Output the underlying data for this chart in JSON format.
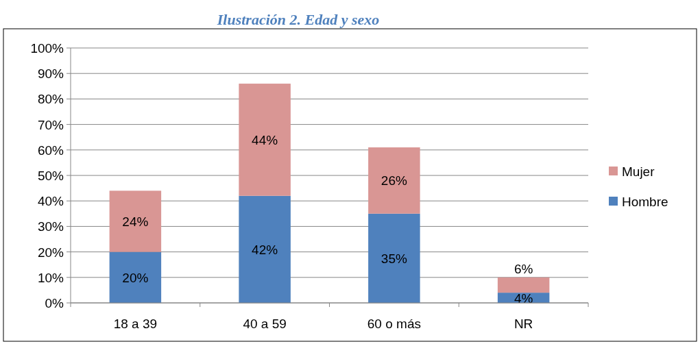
{
  "chart_data": {
    "type": "bar",
    "title": "Ilustración 2. Edad y sexo",
    "categories": [
      "18 a 39",
      "40 a 59",
      "60 o más",
      "NR"
    ],
    "stacked": true,
    "series": [
      {
        "name": "Hombre",
        "color": "#4f81bd",
        "values": [
          20,
          42,
          35,
          4
        ],
        "value_labels": [
          "20%",
          "42%",
          "35%",
          "4%"
        ]
      },
      {
        "name": "Mujer",
        "color": "#d99694",
        "values": [
          24,
          44,
          26,
          6
        ],
        "value_labels": [
          "24%",
          "44%",
          "26%",
          "6%"
        ]
      }
    ],
    "ylim": [
      0,
      100
    ],
    "yticks": [
      {
        "value": 0,
        "label": "0%"
      },
      {
        "value": 10,
        "label": "10%"
      },
      {
        "value": 20,
        "label": "20%"
      },
      {
        "value": 30,
        "label": "30%"
      },
      {
        "value": 40,
        "label": "40%"
      },
      {
        "value": 50,
        "label": "50%"
      },
      {
        "value": 60,
        "label": "60%"
      },
      {
        "value": 70,
        "label": "70%"
      },
      {
        "value": 80,
        "label": "80%"
      },
      {
        "value": 90,
        "label": "90%"
      },
      {
        "value": 100,
        "label": "100%"
      }
    ],
    "grid": "y",
    "legend": "right"
  }
}
